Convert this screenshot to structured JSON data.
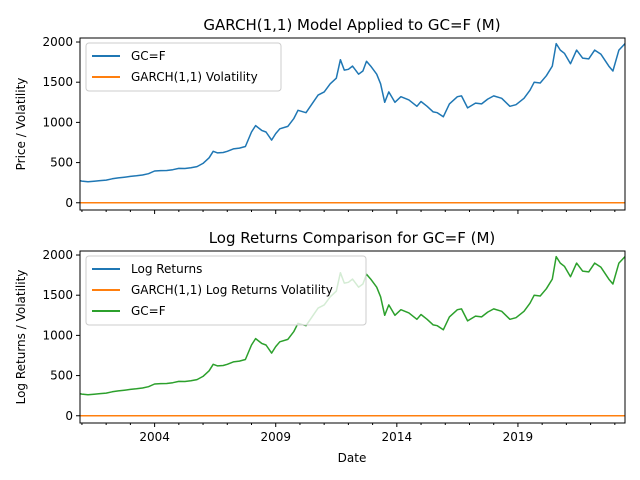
{
  "chart_data": [
    {
      "type": "line",
      "title": "GARCH(1,1) Model Applied to GC=F (M)",
      "xlabel": "",
      "ylabel": "Price / Volatility",
      "xlim": [
        2000.92,
        2023.42
      ],
      "ylim": [
        -90,
        2050
      ],
      "yticks": [
        0,
        500,
        1000,
        1500,
        2000
      ],
      "xticks": [
        2004,
        2009,
        2014,
        2019
      ],
      "xtick_labels_visible": false,
      "grid": false,
      "legend_position": "upper-left",
      "series": [
        {
          "name": "GC=F",
          "color": "#1f77b4",
          "source": "gc"
        },
        {
          "name": "GARCH(1,1) Volatility",
          "color": "#ff7f0e",
          "source": "vol"
        }
      ]
    },
    {
      "type": "line",
      "title": "Log Returns Comparison for GC=F (M)",
      "xlabel": "Date",
      "ylabel": "Log Returns / Volatility",
      "xlim": [
        2000.92,
        2023.42
      ],
      "ylim": [
        -90,
        2050
      ],
      "yticks": [
        0,
        500,
        1000,
        1500,
        2000
      ],
      "xticks": [
        2004,
        2009,
        2014,
        2019
      ],
      "xtick_labels_visible": true,
      "grid": false,
      "legend_position": "upper-left",
      "series": [
        {
          "name": "Log Returns",
          "color": "#1f77b4",
          "source": "logret"
        },
        {
          "name": "GARCH(1,1) Log Returns Volatility",
          "color": "#ff7f0e",
          "source": "vol"
        },
        {
          "name": "GC=F",
          "color": "#2ca02c",
          "source": "gc"
        }
      ]
    }
  ],
  "gc_series": {
    "x": [
      2000.92,
      2001.0,
      2001.25,
      2001.5,
      2001.75,
      2002.0,
      2002.25,
      2002.5,
      2002.75,
      2003.0,
      2003.25,
      2003.5,
      2003.75,
      2004.0,
      2004.25,
      2004.5,
      2004.75,
      2005.0,
      2005.25,
      2005.5,
      2005.75,
      2006.0,
      2006.25,
      2006.42,
      2006.6,
      2006.83,
      2007.0,
      2007.25,
      2007.5,
      2007.75,
      2008.0,
      2008.17,
      2008.42,
      2008.6,
      2008.83,
      2009.0,
      2009.17,
      2009.5,
      2009.75,
      2009.92,
      2010.25,
      2010.5,
      2010.75,
      2011.0,
      2011.25,
      2011.5,
      2011.67,
      2011.83,
      2012.0,
      2012.17,
      2012.42,
      2012.6,
      2012.75,
      2012.92,
      2013.17,
      2013.33,
      2013.5,
      2013.67,
      2013.92,
      2014.17,
      2014.5,
      2014.83,
      2015.0,
      2015.25,
      2015.5,
      2015.67,
      2015.92,
      2016.17,
      2016.5,
      2016.67,
      2016.92,
      2017.25,
      2017.5,
      2017.75,
      2018.0,
      2018.33,
      2018.67,
      2018.92,
      2019.25,
      2019.5,
      2019.67,
      2019.92,
      2020.17,
      2020.42,
      2020.58,
      2020.75,
      2020.92,
      2021.17,
      2021.42,
      2021.67,
      2021.92,
      2022.17,
      2022.42,
      2022.75,
      2022.92,
      2023.17,
      2023.42
    ],
    "y": [
      275,
      270,
      262,
      268,
      276,
      282,
      298,
      310,
      318,
      328,
      335,
      346,
      362,
      395,
      400,
      402,
      412,
      428,
      426,
      436,
      450,
      490,
      560,
      640,
      620,
      625,
      640,
      670,
      680,
      700,
      880,
      960,
      900,
      880,
      780,
      860,
      920,
      950,
      1050,
      1150,
      1120,
      1230,
      1340,
      1380,
      1480,
      1550,
      1780,
      1650,
      1660,
      1700,
      1600,
      1640,
      1760,
      1700,
      1600,
      1480,
      1250,
      1380,
      1250,
      1320,
      1280,
      1200,
      1260,
      1200,
      1130,
      1120,
      1070,
      1230,
      1320,
      1330,
      1180,
      1240,
      1230,
      1290,
      1330,
      1300,
      1200,
      1220,
      1300,
      1400,
      1500,
      1490,
      1580,
      1700,
      1980,
      1900,
      1860,
      1730,
      1900,
      1800,
      1790,
      1900,
      1850,
      1700,
      1640,
      1900,
      1980
    ]
  }
}
